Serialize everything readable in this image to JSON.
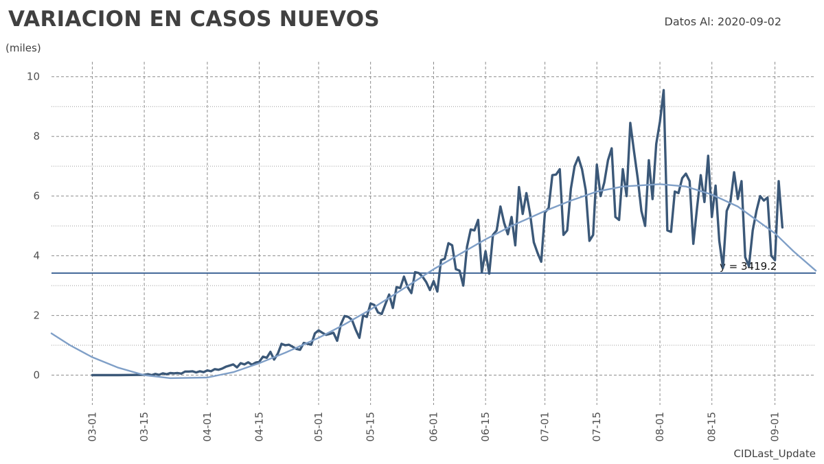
{
  "header": {
    "title": "VARIACION EN CASOS NUEVOS",
    "date_label": "Datos Al: 2020-09-02",
    "units": "(miles)",
    "footer": "CIDLast_Update"
  },
  "colors": {
    "series": "#3b5878",
    "trend": "#7f9fc7",
    "hline": "#3f6496",
    "grid": "#8c8c8c",
    "text": "#404040"
  },
  "chart_data": {
    "type": "line",
    "title": "VARIACION EN CASOS NUEVOS",
    "ylabel": "(miles)",
    "xlabel": "",
    "ylim": [
      -1,
      10.5
    ],
    "xlim": [
      "2020-02-19",
      "2020-09-12"
    ],
    "x_ticks": [
      "03-01",
      "03-15",
      "04-01",
      "04-15",
      "05-01",
      "05-15",
      "06-01",
      "06-15",
      "07-01",
      "07-15",
      "08-01",
      "08-15",
      "09-01"
    ],
    "x_tick_dates": [
      "2020-03-01",
      "2020-03-15",
      "2020-04-01",
      "2020-04-15",
      "2020-05-01",
      "2020-05-15",
      "2020-06-01",
      "2020-06-15",
      "2020-07-01",
      "2020-07-15",
      "2020-08-01",
      "2020-08-15",
      "2020-09-01"
    ],
    "y_ticks": [
      0,
      2,
      4,
      6,
      8,
      10
    ],
    "grid": true,
    "series": [
      {
        "values": [
          [
            "2020-03-01",
            0.0
          ],
          [
            "2020-03-08",
            0.0
          ],
          [
            "2020-03-15",
            0.01
          ],
          [
            "2020-03-16",
            0.03
          ],
          [
            "2020-03-17",
            0.0
          ],
          [
            "2020-03-18",
            0.04
          ],
          [
            "2020-03-19",
            0.01
          ],
          [
            "2020-03-20",
            0.06
          ],
          [
            "2020-03-21",
            0.03
          ],
          [
            "2020-03-22",
            0.07
          ],
          [
            "2020-03-23",
            0.06
          ],
          [
            "2020-03-24",
            0.07
          ],
          [
            "2020-03-25",
            0.05
          ],
          [
            "2020-03-26",
            0.12
          ],
          [
            "2020-03-27",
            0.12
          ],
          [
            "2020-03-28",
            0.13
          ],
          [
            "2020-03-29",
            0.09
          ],
          [
            "2020-03-30",
            0.13
          ],
          [
            "2020-03-31",
            0.1
          ],
          [
            "2020-04-01",
            0.16
          ],
          [
            "2020-04-02",
            0.13
          ],
          [
            "2020-04-03",
            0.2
          ],
          [
            "2020-04-04",
            0.18
          ],
          [
            "2020-04-05",
            0.22
          ],
          [
            "2020-04-06",
            0.28
          ],
          [
            "2020-04-07",
            0.32
          ],
          [
            "2020-04-08",
            0.36
          ],
          [
            "2020-04-09",
            0.26
          ],
          [
            "2020-04-10",
            0.4
          ],
          [
            "2020-04-11",
            0.36
          ],
          [
            "2020-04-12",
            0.43
          ],
          [
            "2020-04-13",
            0.35
          ],
          [
            "2020-04-14",
            0.42
          ],
          [
            "2020-04-15",
            0.45
          ],
          [
            "2020-04-16",
            0.62
          ],
          [
            "2020-04-17",
            0.58
          ],
          [
            "2020-04-18",
            0.78
          ],
          [
            "2020-04-19",
            0.52
          ],
          [
            "2020-04-20",
            0.72
          ],
          [
            "2020-04-21",
            1.05
          ],
          [
            "2020-04-22",
            1.0
          ],
          [
            "2020-04-23",
            1.02
          ],
          [
            "2020-04-24",
            0.95
          ],
          [
            "2020-04-25",
            0.88
          ],
          [
            "2020-04-26",
            0.85
          ],
          [
            "2020-04-27",
            1.08
          ],
          [
            "2020-04-28",
            1.05
          ],
          [
            "2020-04-29",
            1.02
          ],
          [
            "2020-04-30",
            1.4
          ],
          [
            "2020-05-01",
            1.5
          ],
          [
            "2020-05-02",
            1.42
          ],
          [
            "2020-05-03",
            1.35
          ],
          [
            "2020-05-04",
            1.38
          ],
          [
            "2020-05-05",
            1.42
          ],
          [
            "2020-05-06",
            1.15
          ],
          [
            "2020-05-07",
            1.7
          ],
          [
            "2020-05-08",
            1.98
          ],
          [
            "2020-05-09",
            1.95
          ],
          [
            "2020-05-10",
            1.85
          ],
          [
            "2020-05-11",
            1.52
          ],
          [
            "2020-05-12",
            1.25
          ],
          [
            "2020-05-13",
            2.0
          ],
          [
            "2020-05-14",
            1.95
          ],
          [
            "2020-05-15",
            2.4
          ],
          [
            "2020-05-16",
            2.35
          ],
          [
            "2020-05-17",
            2.1
          ],
          [
            "2020-05-18",
            2.05
          ],
          [
            "2020-05-19",
            2.38
          ],
          [
            "2020-05-20",
            2.7
          ],
          [
            "2020-05-21",
            2.25
          ],
          [
            "2020-05-22",
            2.95
          ],
          [
            "2020-05-23",
            2.92
          ],
          [
            "2020-05-24",
            3.3
          ],
          [
            "2020-05-25",
            2.95
          ],
          [
            "2020-05-26",
            2.75
          ],
          [
            "2020-05-27",
            3.45
          ],
          [
            "2020-05-28",
            3.42
          ],
          [
            "2020-05-29",
            3.3
          ],
          [
            "2020-05-30",
            3.12
          ],
          [
            "2020-05-31",
            2.85
          ],
          [
            "2020-06-01",
            3.15
          ],
          [
            "2020-06-02",
            2.8
          ],
          [
            "2020-06-03",
            3.85
          ],
          [
            "2020-06-04",
            3.9
          ],
          [
            "2020-06-05",
            4.42
          ],
          [
            "2020-06-06",
            4.35
          ],
          [
            "2020-06-07",
            3.55
          ],
          [
            "2020-06-08",
            3.5
          ],
          [
            "2020-06-09",
            3.0
          ],
          [
            "2020-06-10",
            4.3
          ],
          [
            "2020-06-11",
            4.88
          ],
          [
            "2020-06-12",
            4.85
          ],
          [
            "2020-06-13",
            5.2
          ],
          [
            "2020-06-14",
            3.45
          ],
          [
            "2020-06-15",
            4.15
          ],
          [
            "2020-06-16",
            3.4
          ],
          [
            "2020-06-17",
            4.7
          ],
          [
            "2020-06-18",
            4.85
          ],
          [
            "2020-06-19",
            5.65
          ],
          [
            "2020-06-20",
            5.1
          ],
          [
            "2020-06-21",
            4.72
          ],
          [
            "2020-06-22",
            5.3
          ],
          [
            "2020-06-23",
            4.35
          ],
          [
            "2020-06-24",
            6.3
          ],
          [
            "2020-06-25",
            5.4
          ],
          [
            "2020-06-26",
            6.1
          ],
          [
            "2020-06-27",
            5.4
          ],
          [
            "2020-06-28",
            4.45
          ],
          [
            "2020-06-29",
            4.1
          ],
          [
            "2020-06-30",
            3.8
          ],
          [
            "2020-07-01",
            5.45
          ],
          [
            "2020-07-02",
            5.6
          ],
          [
            "2020-07-03",
            6.7
          ],
          [
            "2020-07-04",
            6.72
          ],
          [
            "2020-07-05",
            6.9
          ],
          [
            "2020-07-06",
            4.7
          ],
          [
            "2020-07-07",
            4.85
          ],
          [
            "2020-07-08",
            6.25
          ],
          [
            "2020-07-09",
            7.0
          ],
          [
            "2020-07-10",
            7.3
          ],
          [
            "2020-07-11",
            6.9
          ],
          [
            "2020-07-12",
            6.2
          ],
          [
            "2020-07-13",
            4.5
          ],
          [
            "2020-07-14",
            4.7
          ],
          [
            "2020-07-15",
            7.05
          ],
          [
            "2020-07-16",
            6.0
          ],
          [
            "2020-07-17",
            6.45
          ],
          [
            "2020-07-18",
            7.2
          ],
          [
            "2020-07-19",
            7.6
          ],
          [
            "2020-07-20",
            5.3
          ],
          [
            "2020-07-21",
            5.2
          ],
          [
            "2020-07-22",
            6.9
          ],
          [
            "2020-07-23",
            6.0
          ],
          [
            "2020-07-24",
            8.45
          ],
          [
            "2020-07-25",
            7.5
          ],
          [
            "2020-07-26",
            6.6
          ],
          [
            "2020-07-27",
            5.5
          ],
          [
            "2020-07-28",
            5.0
          ],
          [
            "2020-07-29",
            7.2
          ],
          [
            "2020-07-30",
            5.9
          ],
          [
            "2020-07-31",
            7.75
          ],
          [
            "2020-08-01",
            8.5
          ],
          [
            "2020-08-02",
            9.55
          ],
          [
            "2020-08-03",
            4.85
          ],
          [
            "2020-08-04",
            4.8
          ],
          [
            "2020-08-05",
            6.15
          ],
          [
            "2020-08-06",
            6.1
          ],
          [
            "2020-08-07",
            6.6
          ],
          [
            "2020-08-08",
            6.75
          ],
          [
            "2020-08-09",
            6.5
          ],
          [
            "2020-08-10",
            4.4
          ],
          [
            "2020-08-11",
            5.6
          ],
          [
            "2020-08-12",
            6.7
          ],
          [
            "2020-08-13",
            5.8
          ],
          [
            "2020-08-14",
            7.35
          ],
          [
            "2020-08-15",
            5.3
          ],
          [
            "2020-08-16",
            6.35
          ],
          [
            "2020-08-17",
            4.5
          ],
          [
            "2020-08-18",
            3.6
          ],
          [
            "2020-08-19",
            5.5
          ],
          [
            "2020-08-20",
            5.8
          ],
          [
            "2020-08-21",
            6.8
          ],
          [
            "2020-08-22",
            5.9
          ],
          [
            "2020-08-23",
            6.5
          ],
          [
            "2020-08-24",
            3.95
          ],
          [
            "2020-08-25",
            3.65
          ],
          [
            "2020-08-26",
            4.85
          ],
          [
            "2020-08-27",
            5.5
          ],
          [
            "2020-08-28",
            6.0
          ],
          [
            "2020-08-29",
            5.85
          ],
          [
            "2020-08-30",
            5.95
          ],
          [
            "2020-08-31",
            4.0
          ],
          [
            "2020-09-01",
            3.85
          ],
          [
            "2020-09-02",
            6.5
          ],
          [
            "2020-09-03",
            4.95
          ]
        ]
      },
      {
        "type": "trend",
        "values": [
          [
            "2020-02-19",
            1.4
          ],
          [
            "2020-02-24",
            1.0
          ],
          [
            "2020-03-01",
            0.6
          ],
          [
            "2020-03-08",
            0.25
          ],
          [
            "2020-03-15",
            0.0
          ],
          [
            "2020-03-22",
            -0.1
          ],
          [
            "2020-04-01",
            -0.08
          ],
          [
            "2020-04-08",
            0.1
          ],
          [
            "2020-04-15",
            0.4
          ],
          [
            "2020-04-22",
            0.75
          ],
          [
            "2020-05-01",
            1.25
          ],
          [
            "2020-05-08",
            1.7
          ],
          [
            "2020-05-15",
            2.2
          ],
          [
            "2020-05-22",
            2.75
          ],
          [
            "2020-06-01",
            3.55
          ],
          [
            "2020-06-08",
            4.05
          ],
          [
            "2020-06-15",
            4.55
          ],
          [
            "2020-06-22",
            5.0
          ],
          [
            "2020-07-01",
            5.5
          ],
          [
            "2020-07-08",
            5.85
          ],
          [
            "2020-07-15",
            6.15
          ],
          [
            "2020-07-22",
            6.32
          ],
          [
            "2020-08-01",
            6.4
          ],
          [
            "2020-08-08",
            6.32
          ],
          [
            "2020-08-15",
            6.05
          ],
          [
            "2020-08-22",
            5.65
          ],
          [
            "2020-09-01",
            4.75
          ],
          [
            "2020-09-06",
            4.15
          ],
          [
            "2020-09-12",
            3.5
          ]
        ]
      }
    ],
    "hline": {
      "y": 3.4192,
      "label": "y = 3419.2"
    }
  }
}
